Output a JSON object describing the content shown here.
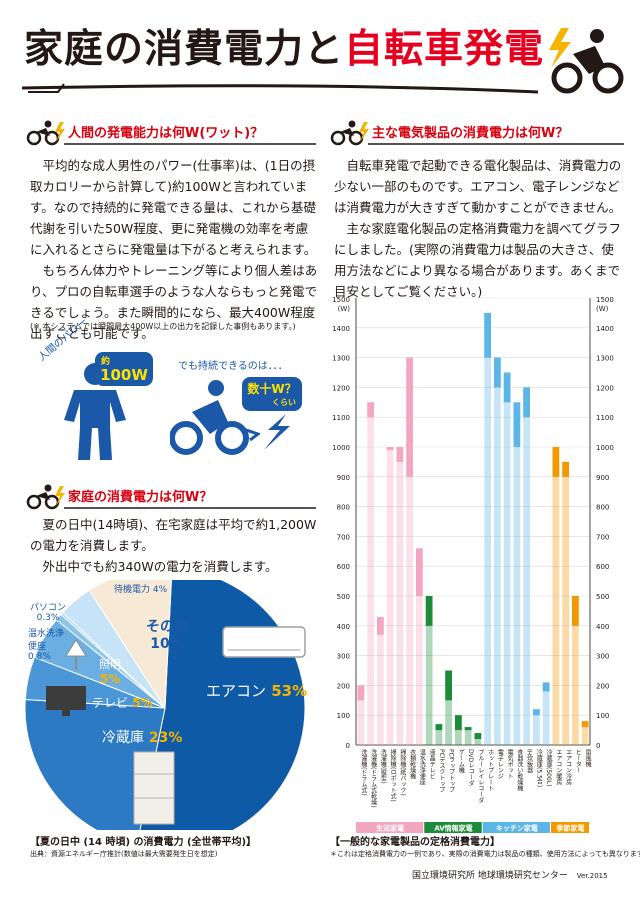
{
  "title": {
    "part1": "家庭の消費電力と",
    "part2": "自転車発電"
  },
  "sections": {
    "human_power": {
      "heading": "人間の発電能力は何W(ワット)？",
      "paragraphs": [
        "平均的な成人男性のパワー(仕事率)は、(1日の摂取カロリーから計算して)約100Wと言われています。なので持続的に発電できる量は、これから基礎代謝を引いた50W程度、更に発電機の効率を考慮に入れるとさらに発電量は下がると考えられます。",
        "もちろん体力やトレーニング等により個人差はあり、プロの自転車選手のような人ならもっと発電できるでしょう。また瞬間的になら、最大400W程度出すことも可能です。"
      ],
      "note": "(※ 本システムでは瞬間最大400W以上の出力を記録した事例もあります。)",
      "illus": {
        "human_power_hand": "人間のパワー",
        "human_power_value_prefix": "約",
        "human_power_value": "100W",
        "sustain_hand": "でも持続できるのは．．．",
        "sustain_value": "数十W？",
        "sustain_suffix": "くらい"
      }
    },
    "home_power": {
      "heading": "家庭の消費電力は何W？",
      "paragraphs": [
        "夏の日中(14時頃)、在宅家庭は平均で約1,200Wの電力を消費します。",
        "外出中でも約340Wの電力を消費します。"
      ],
      "pie_caption": "【夏の日中 (14 時頃) の消費電力 (全世帯平均)】",
      "pie_source": "出典：資源エネルギー庁推計(数値は最大需要発生日を想定)"
    },
    "appliances": {
      "heading": "主な電気製品の消費電力は何W？",
      "paragraphs": [
        "自転車発電で起動できる電化製品は、消費電力の少ない一部のものです。エアコン、電子レンジなどは消費電力が大きすぎて動かすことができません。",
        "主な家庭電化製品の定格消費電力を調べてグラフにしました。(実際の消費電力は製品の大きさ、使用方法などにより異なる場合があります。あくまで目安としてご覧ください。)"
      ],
      "chart_caption": "【一般的な家電製品の定格消費電力】",
      "chart_note": "＊これは定格消費電力の一例であり、実際の消費電力は製品の種類、使用方法によっても異なります。"
    }
  },
  "footer": {
    "org": "国立環境研究所 地球環境研究センター",
    "version": "Ver.2015"
  },
  "colors": {
    "accent_red": "#e6001f",
    "blue": "#1b59a8",
    "pink": "#f3a6bf",
    "green": "#1e8b3b",
    "lightblue": "#5bb5e6",
    "orange": "#f29800"
  },
  "pie_data": {
    "type": "pie",
    "slices": [
      {
        "label": "エアコン",
        "value_label": "53%",
        "value": 53,
        "color": "#0f5aa6"
      },
      {
        "label": "冷蔵庫",
        "value_label": "23%",
        "value": 23,
        "color": "#2c79c4"
      },
      {
        "label": "テレビ",
        "value_label": "5%",
        "value": 5,
        "color": "#4a96d6"
      },
      {
        "label": "照明",
        "value_label": "5%",
        "value": 5,
        "color": "#6aaee2"
      },
      {
        "label": "温水洗浄便座",
        "value_label": "0.8%",
        "value": 0.8,
        "color": "#8dc4ec"
      },
      {
        "label": "パソコン",
        "value_label": "0.3%",
        "value": 0.3,
        "color": "#a9d3f1"
      },
      {
        "label": "待機電力",
        "value_label": "4%",
        "value": 4,
        "color": "#c6e3f7"
      },
      {
        "label": "その他",
        "value_label": "10%",
        "value": 10,
        "color": "#f6ead7"
      }
    ]
  },
  "chart_data": {
    "type": "bar",
    "ylim": [
      0,
      1500
    ],
    "yticks": [
      0,
      100,
      200,
      300,
      400,
      500,
      600,
      700,
      800,
      900,
      1000,
      1100,
      1200,
      1300,
      1400,
      1500
    ],
    "ylabel": "1500\n(W)",
    "categories": [
      {
        "name": "洗濯機(ドラム式)",
        "group": "生活家電",
        "min": 150,
        "max": 200
      },
      {
        "name": "洗濯機(ドラム式乾燥)",
        "group": "生活家電",
        "min": 1100,
        "max": 1150
      },
      {
        "name": "洗濯機(縦型)",
        "group": "生活家電",
        "min": 370,
        "max": 430
      },
      {
        "name": "掃除機(ロボット式)",
        "group": "生活家電",
        "min": 1000,
        "max": 1000
      },
      {
        "name": "掃除機(紙パック)",
        "group": "生活家電",
        "min": 950,
        "max": 1000
      },
      {
        "name": "衣類乾燥機",
        "group": "生活家電",
        "min": 900,
        "max": 1300
      },
      {
        "name": "温水洗浄便座",
        "group": "生活家電",
        "min": 500,
        "max": 660
      },
      {
        "name": "液晶テレビ",
        "group": "AV情報家電",
        "min": 400,
        "max": 500
      },
      {
        "name": "PCデスクトップ",
        "group": "AV情報家電",
        "min": 50,
        "max": 70
      },
      {
        "name": "PCラップトップ",
        "group": "AV情報家電",
        "min": 150,
        "max": 250
      },
      {
        "name": "ゲーム機",
        "group": "AV情報家電",
        "min": 50,
        "max": 100
      },
      {
        "name": "DVDレコーダ",
        "group": "AV情報家電",
        "min": 50,
        "max": 60
      },
      {
        "name": "ブルーレイレコーダ",
        "group": "AV情報家電",
        "min": 20,
        "max": 40
      },
      {
        "name": "ホットプレート",
        "group": "キッチン家電",
        "min": 1300,
        "max": 1450
      },
      {
        "name": "電子レンジ",
        "group": "キッチン家電",
        "min": 1200,
        "max": 1300
      },
      {
        "name": "電気ポット",
        "group": "キッチン家電",
        "min": 1150,
        "max": 1250
      },
      {
        "name": "食器洗い乾燥機",
        "group": "キッチン家電",
        "min": 1000,
        "max": 1150
      },
      {
        "name": "IH炊飯器",
        "group": "キッチン家電",
        "min": 1100,
        "max": 1200
      },
      {
        "name": "冷蔵庫(5.5合)",
        "group": "キッチン家電",
        "min": 100,
        "max": 120
      },
      {
        "name": "冷蔵庫(500L)",
        "group": "キッチン家電",
        "min": 180,
        "max": 210
      },
      {
        "name": "エアコン暖房",
        "group": "季節家電",
        "min": 900,
        "max": 1000
      },
      {
        "name": "エアコン冷房",
        "group": "季節家電",
        "min": 900,
        "max": 950
      },
      {
        "name": "ヒーター",
        "group": "季節家電",
        "min": 400,
        "max": 500
      },
      {
        "name": "扇風機",
        "group": "季節家電",
        "min": 60,
        "max": 80
      }
    ],
    "groups": [
      {
        "name": "生活家電",
        "color": "#f3a6bf"
      },
      {
        "name": "AV情報家電",
        "color": "#1e8b3b"
      },
      {
        "name": "キッチン家電",
        "color": "#5bb5e6"
      },
      {
        "name": "季節家電",
        "color": "#f29800"
      }
    ]
  }
}
